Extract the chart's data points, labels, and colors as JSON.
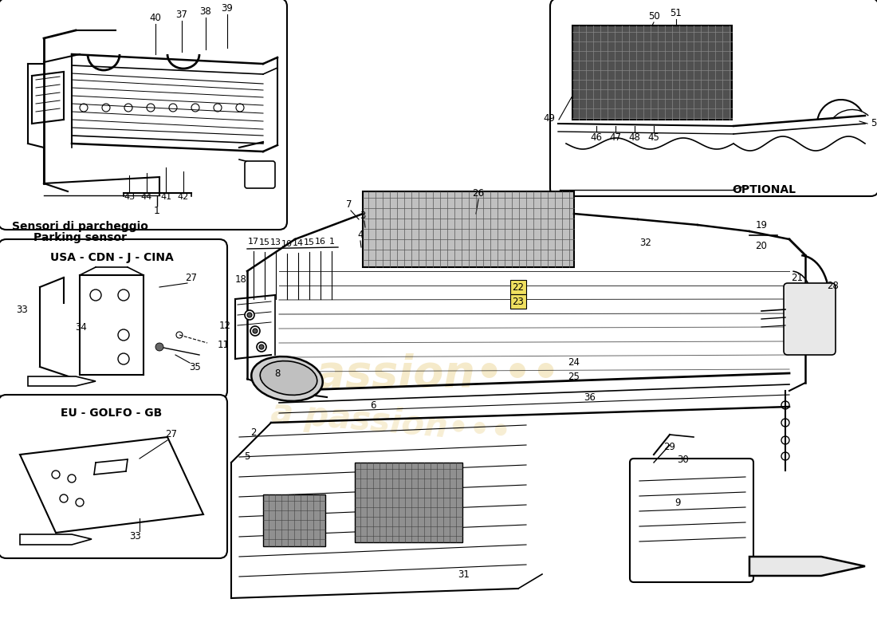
{
  "bg": "#ffffff",
  "lc": "#000000",
  "yel": "#f0e060",
  "wm": "#d4a010",
  "i1_title1": "Sensori di parcheggio",
  "i1_title2": "Parking sensor",
  "i2_title": "USA - CDN - J - CINA",
  "i3_title": "EU - GOLFO - GB",
  "opt_label": "OPTIONAL",
  "pn_19": "19",
  "pn_20": "20"
}
